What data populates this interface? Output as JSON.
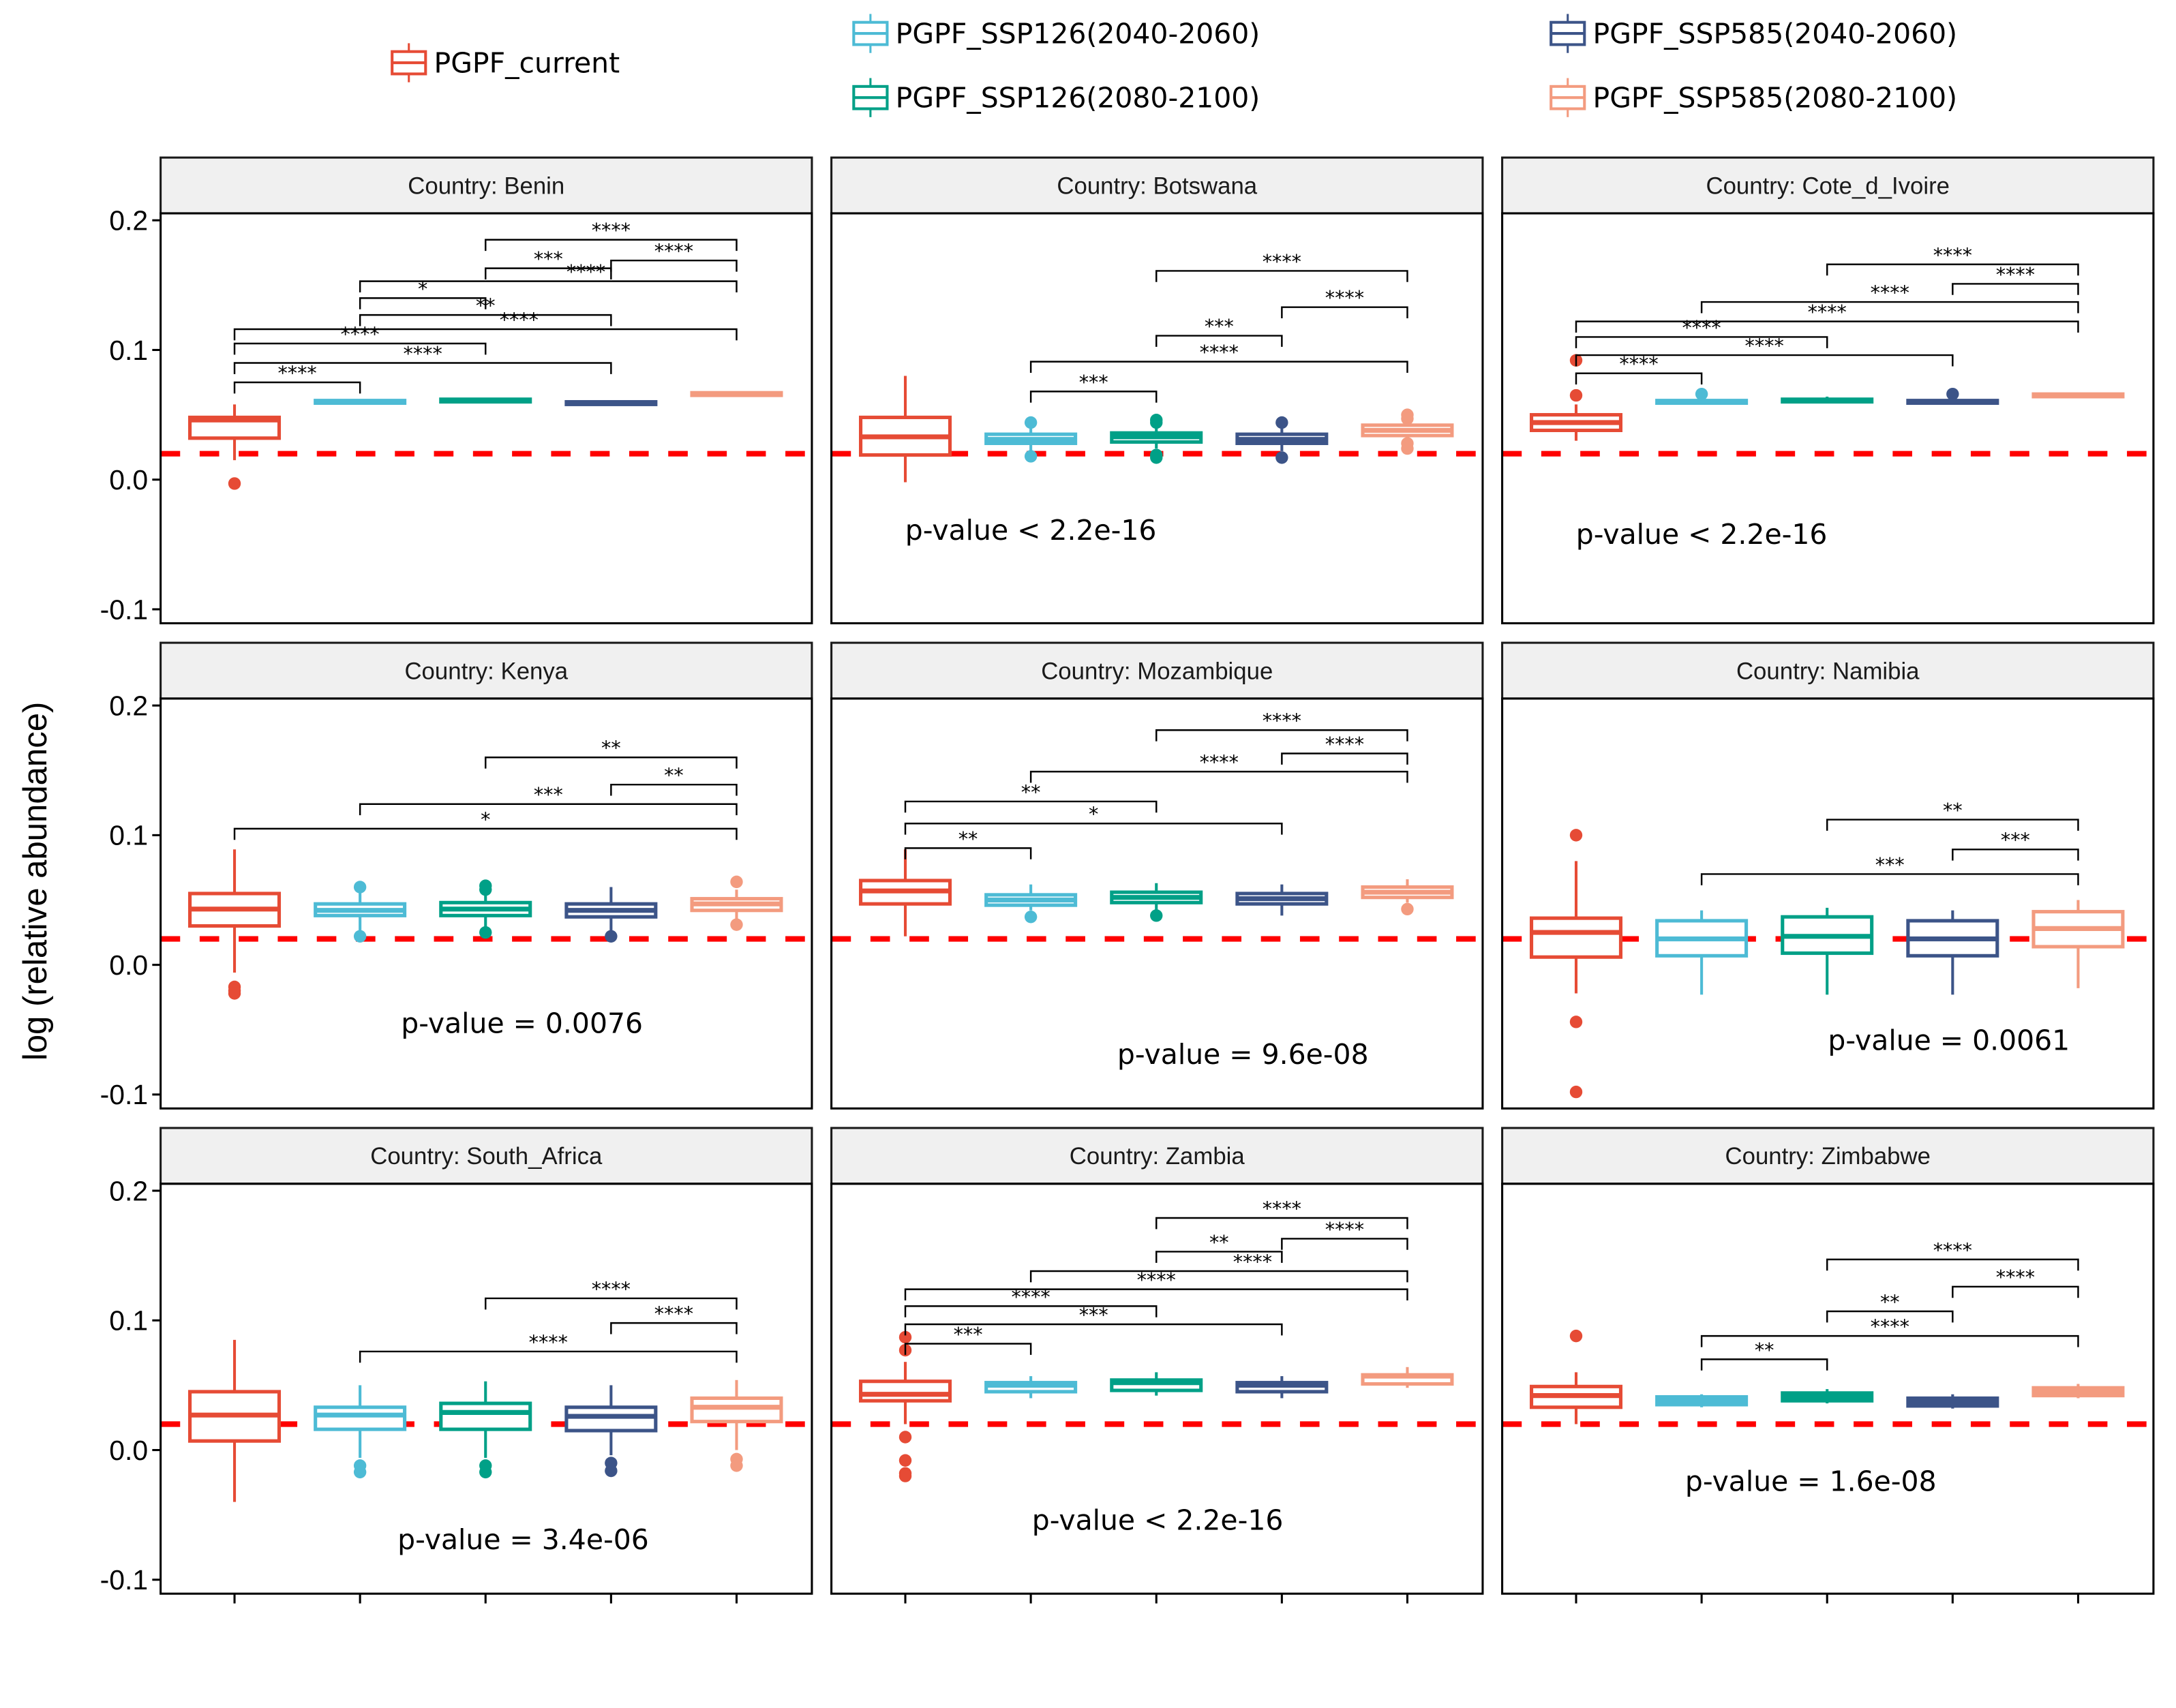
{
  "chart_data": {
    "type": "boxplot",
    "ylabel": "log (relative abundance)",
    "ylim": [
      -0.11,
      0.24
    ],
    "yticks": [
      0.2,
      0.1,
      0.0,
      -0.1
    ],
    "ytick_labels": [
      "0.2",
      "0.1",
      "0.0",
      "-0.1"
    ],
    "reference_line": {
      "y": 0.02,
      "color": "#FF0000",
      "style": "dashed"
    },
    "grid": false,
    "legend_position": "top",
    "groups": [
      "PGPF_current",
      "PGPF_SSP126(2040-2060)",
      "PGPF_SSP126(2080-2100)",
      "PGPF_SSP585(2040-2060)",
      "PGPF_SSP585(2080-2100)"
    ],
    "colors": [
      "#E64B35",
      "#4DBBD5",
      "#00A087",
      "#3C5488",
      "#F39B7F"
    ],
    "panels": [
      {
        "title": "Country: Benin",
        "pvalue": "",
        "boxes": [
          {
            "q1": 0.032,
            "median": 0.046,
            "q3": 0.048,
            "lo": 0.015,
            "hi": 0.058,
            "outliers": [
              -0.003
            ]
          },
          {
            "q1": 0.059,
            "median": 0.06,
            "q3": 0.061,
            "lo": 0.058,
            "hi": 0.062,
            "outliers": []
          },
          {
            "q1": 0.06,
            "median": 0.061,
            "q3": 0.062,
            "lo": 0.059,
            "hi": 0.063,
            "outliers": []
          },
          {
            "q1": 0.058,
            "median": 0.059,
            "q3": 0.06,
            "lo": 0.057,
            "hi": 0.061,
            "outliers": []
          },
          {
            "q1": 0.065,
            "median": 0.066,
            "q3": 0.067,
            "lo": 0.064,
            "hi": 0.068,
            "outliers": []
          }
        ],
        "comparisons": [
          [
            1,
            2,
            "****",
            0.075
          ],
          [
            1,
            4,
            "****",
            0.09
          ],
          [
            1,
            3,
            "****",
            0.105
          ],
          [
            1,
            5,
            "****",
            0.116
          ],
          [
            2,
            4,
            "**",
            0.127
          ],
          [
            2,
            3,
            "*",
            0.14
          ],
          [
            2,
            5,
            "****",
            0.153
          ],
          [
            3,
            4,
            "***",
            0.163
          ],
          [
            4,
            5,
            "****",
            0.169
          ],
          [
            3,
            5,
            "****",
            0.185
          ]
        ]
      },
      {
        "title": "Country: Botswana",
        "pvalue": "p-value < 2.2e-16",
        "pvalue_pos": [
          2.0,
          -0.039
        ],
        "boxes": [
          {
            "q1": 0.019,
            "median": 0.033,
            "q3": 0.048,
            "lo": -0.002,
            "hi": 0.08,
            "outliers": []
          },
          {
            "q1": 0.028,
            "median": 0.031,
            "q3": 0.035,
            "lo": 0.022,
            "hi": 0.04,
            "outliers": [
              0.044,
              0.018
            ]
          },
          {
            "q1": 0.029,
            "median": 0.033,
            "q3": 0.036,
            "lo": 0.024,
            "hi": 0.041,
            "outliers": [
              0.046,
              0.044,
              0.019,
              0.017
            ]
          },
          {
            "q1": 0.028,
            "median": 0.031,
            "q3": 0.035,
            "lo": 0.022,
            "hi": 0.04,
            "outliers": [
              0.044,
              0.017
            ]
          },
          {
            "q1": 0.034,
            "median": 0.038,
            "q3": 0.042,
            "lo": 0.031,
            "hi": 0.045,
            "outliers": [
              0.05,
              0.047,
              0.028,
              0.024
            ]
          }
        ],
        "comparisons": [
          [
            2,
            3,
            "***",
            0.068
          ],
          [
            2,
            5,
            "****",
            0.091
          ],
          [
            3,
            4,
            "***",
            0.111
          ],
          [
            4,
            5,
            "****",
            0.133
          ],
          [
            3,
            5,
            "****",
            0.161
          ]
        ]
      },
      {
        "title": "Country: Cote_d_Ivoire",
        "pvalue": "p-value < 2.2e-16",
        "pvalue_pos": [
          2.0,
          -0.042
        ],
        "boxes": [
          {
            "q1": 0.038,
            "median": 0.044,
            "q3": 0.05,
            "lo": 0.03,
            "hi": 0.058,
            "outliers": [
              0.092,
              0.065
            ]
          },
          {
            "q1": 0.059,
            "median": 0.06,
            "q3": 0.061,
            "lo": 0.058,
            "hi": 0.062,
            "outliers": [
              0.066
            ]
          },
          {
            "q1": 0.06,
            "median": 0.061,
            "q3": 0.062,
            "lo": 0.059,
            "hi": 0.064,
            "outliers": []
          },
          {
            "q1": 0.059,
            "median": 0.06,
            "q3": 0.061,
            "lo": 0.058,
            "hi": 0.062,
            "outliers": [
              0.066
            ]
          },
          {
            "q1": 0.064,
            "median": 0.065,
            "q3": 0.066,
            "lo": 0.063,
            "hi": 0.067,
            "outliers": []
          }
        ],
        "comparisons": [
          [
            1,
            2,
            "****",
            0.082
          ],
          [
            1,
            4,
            "****",
            0.096
          ],
          [
            1,
            3,
            "****",
            0.11
          ],
          [
            1,
            5,
            "****",
            0.122
          ],
          [
            2,
            5,
            "****",
            0.137
          ],
          [
            4,
            5,
            "****",
            0.151
          ],
          [
            3,
            5,
            "****",
            0.166
          ]
        ]
      },
      {
        "title": "Country: Kenya",
        "pvalue": "p-value = 0.0076",
        "pvalue_pos": [
          3.29,
          -0.045
        ],
        "boxes": [
          {
            "q1": 0.03,
            "median": 0.043,
            "q3": 0.055,
            "lo": -0.006,
            "hi": 0.089,
            "outliers": [
              -0.017,
              -0.02,
              -0.022
            ]
          },
          {
            "q1": 0.038,
            "median": 0.042,
            "q3": 0.047,
            "lo": 0.026,
            "hi": 0.056,
            "outliers": [
              0.06,
              0.022
            ]
          },
          {
            "q1": 0.038,
            "median": 0.043,
            "q3": 0.048,
            "lo": 0.029,
            "hi": 0.055,
            "outliers": [
              0.061,
              0.058,
              0.025
            ]
          },
          {
            "q1": 0.037,
            "median": 0.042,
            "q3": 0.047,
            "lo": 0.026,
            "hi": 0.06,
            "outliers": [
              0.022
            ]
          },
          {
            "q1": 0.042,
            "median": 0.047,
            "q3": 0.051,
            "lo": 0.035,
            "hi": 0.058,
            "outliers": [
              0.064,
              0.031
            ]
          }
        ],
        "comparisons": [
          [
            1,
            5,
            "*",
            0.105
          ],
          [
            2,
            5,
            "***",
            0.124
          ],
          [
            4,
            5,
            "**",
            0.139
          ],
          [
            3,
            5,
            "**",
            0.16
          ]
        ]
      },
      {
        "title": "Country: Mozambique",
        "pvalue": "p-value = 9.6e-08",
        "pvalue_pos": [
          3.69,
          -0.069
        ],
        "boxes": [
          {
            "q1": 0.047,
            "median": 0.057,
            "q3": 0.065,
            "lo": 0.022,
            "hi": 0.089,
            "outliers": []
          },
          {
            "q1": 0.046,
            "median": 0.05,
            "q3": 0.054,
            "lo": 0.042,
            "hi": 0.062,
            "outliers": [
              0.037
            ]
          },
          {
            "q1": 0.048,
            "median": 0.052,
            "q3": 0.056,
            "lo": 0.042,
            "hi": 0.063,
            "outliers": [
              0.038
            ]
          },
          {
            "q1": 0.047,
            "median": 0.051,
            "q3": 0.055,
            "lo": 0.038,
            "hi": 0.062,
            "outliers": []
          },
          {
            "q1": 0.052,
            "median": 0.056,
            "q3": 0.06,
            "lo": 0.048,
            "hi": 0.066,
            "outliers": [
              0.043
            ]
          }
        ],
        "comparisons": [
          [
            1,
            2,
            "**",
            0.09
          ],
          [
            1,
            4,
            "*",
            0.109
          ],
          [
            1,
            3,
            "**",
            0.126
          ],
          [
            2,
            5,
            "****",
            0.149
          ],
          [
            4,
            5,
            "****",
            0.163
          ],
          [
            3,
            5,
            "****",
            0.181
          ]
        ]
      },
      {
        "title": "Country: Namibia",
        "pvalue": "p-value = 0.0061",
        "pvalue_pos": [
          3.97,
          -0.058
        ],
        "boxes": [
          {
            "q1": 0.006,
            "median": 0.025,
            "q3": 0.036,
            "lo": -0.022,
            "hi": 0.08,
            "outliers": [
              0.1,
              -0.044,
              -0.098
            ]
          },
          {
            "q1": 0.007,
            "median": 0.02,
            "q3": 0.034,
            "lo": -0.023,
            "hi": 0.042,
            "outliers": []
          },
          {
            "q1": 0.009,
            "median": 0.022,
            "q3": 0.037,
            "lo": -0.023,
            "hi": 0.044,
            "outliers": []
          },
          {
            "q1": 0.007,
            "median": 0.02,
            "q3": 0.034,
            "lo": -0.023,
            "hi": 0.042,
            "outliers": []
          },
          {
            "q1": 0.014,
            "median": 0.028,
            "q3": 0.041,
            "lo": -0.018,
            "hi": 0.05,
            "outliers": []
          }
        ],
        "comparisons": [
          [
            2,
            5,
            "***",
            0.07
          ],
          [
            4,
            5,
            "***",
            0.089
          ],
          [
            3,
            5,
            "**",
            0.112
          ]
        ]
      },
      {
        "title": "Country: South_Africa",
        "pvalue": "p-value = 3.4e-06",
        "pvalue_pos": [
          3.3,
          -0.069
        ],
        "boxes": [
          {
            "q1": 0.007,
            "median": 0.027,
            "q3": 0.045,
            "lo": -0.04,
            "hi": 0.085,
            "outliers": []
          },
          {
            "q1": 0.016,
            "median": 0.027,
            "q3": 0.033,
            "lo": -0.006,
            "hi": 0.05,
            "outliers": [
              -0.012,
              -0.017
            ]
          },
          {
            "q1": 0.016,
            "median": 0.029,
            "q3": 0.036,
            "lo": -0.006,
            "hi": 0.053,
            "outliers": [
              -0.012,
              -0.017
            ]
          },
          {
            "q1": 0.015,
            "median": 0.026,
            "q3": 0.033,
            "lo": -0.004,
            "hi": 0.05,
            "outliers": [
              -0.01,
              -0.016
            ]
          },
          {
            "q1": 0.022,
            "median": 0.033,
            "q3": 0.04,
            "lo": 0.0,
            "hi": 0.054,
            "outliers": [
              -0.007,
              -0.012
            ]
          }
        ],
        "comparisons": [
          [
            2,
            5,
            "****",
            0.076
          ],
          [
            4,
            5,
            "****",
            0.098
          ],
          [
            3,
            5,
            "****",
            0.117
          ]
        ]
      },
      {
        "title": "Country: Zambia",
        "pvalue": "p-value < 2.2e-16",
        "pvalue_pos": [
          3.01,
          -0.054
        ],
        "boxes": [
          {
            "q1": 0.038,
            "median": 0.043,
            "q3": 0.053,
            "lo": 0.02,
            "hi": 0.068,
            "outliers": [
              0.087,
              0.077,
              0.01,
              -0.008,
              -0.018,
              -0.02
            ]
          },
          {
            "q1": 0.045,
            "median": 0.05,
            "q3": 0.052,
            "lo": 0.04,
            "hi": 0.057,
            "outliers": []
          },
          {
            "q1": 0.046,
            "median": 0.052,
            "q3": 0.054,
            "lo": 0.042,
            "hi": 0.06,
            "outliers": []
          },
          {
            "q1": 0.045,
            "median": 0.05,
            "q3": 0.052,
            "lo": 0.04,
            "hi": 0.057,
            "outliers": []
          },
          {
            "q1": 0.051,
            "median": 0.057,
            "q3": 0.058,
            "lo": 0.048,
            "hi": 0.064,
            "outliers": []
          }
        ],
        "comparisons": [
          [
            1,
            2,
            "***",
            0.082
          ],
          [
            1,
            4,
            "***",
            0.097
          ],
          [
            1,
            3,
            "****",
            0.111
          ],
          [
            1,
            5,
            "****",
            0.124
          ],
          [
            2,
            5,
            "****",
            0.138
          ],
          [
            3,
            4,
            "**",
            0.153
          ],
          [
            4,
            5,
            "****",
            0.163
          ],
          [
            3,
            5,
            "****",
            0.179
          ]
        ]
      },
      {
        "title": "Country: Zimbabwe",
        "pvalue": "p-value = 1.6e-08",
        "pvalue_pos": [
          2.87,
          -0.024
        ],
        "boxes": [
          {
            "q1": 0.033,
            "median": 0.042,
            "q3": 0.049,
            "lo": 0.02,
            "hi": 0.06,
            "outliers": [
              0.088
            ]
          },
          {
            "q1": 0.035,
            "median": 0.038,
            "q3": 0.041,
            "lo": 0.033,
            "hi": 0.043,
            "outliers": []
          },
          {
            "q1": 0.038,
            "median": 0.041,
            "q3": 0.044,
            "lo": 0.036,
            "hi": 0.047,
            "outliers": []
          },
          {
            "q1": 0.034,
            "median": 0.037,
            "q3": 0.04,
            "lo": 0.032,
            "hi": 0.043,
            "outliers": []
          },
          {
            "q1": 0.042,
            "median": 0.045,
            "q3": 0.048,
            "lo": 0.04,
            "hi": 0.051,
            "outliers": []
          }
        ],
        "comparisons": [
          [
            2,
            3,
            "**",
            0.07
          ],
          [
            2,
            5,
            "****",
            0.088
          ],
          [
            3,
            4,
            "**",
            0.107
          ],
          [
            4,
            5,
            "****",
            0.126
          ],
          [
            3,
            5,
            "****",
            0.147
          ]
        ]
      }
    ]
  }
}
